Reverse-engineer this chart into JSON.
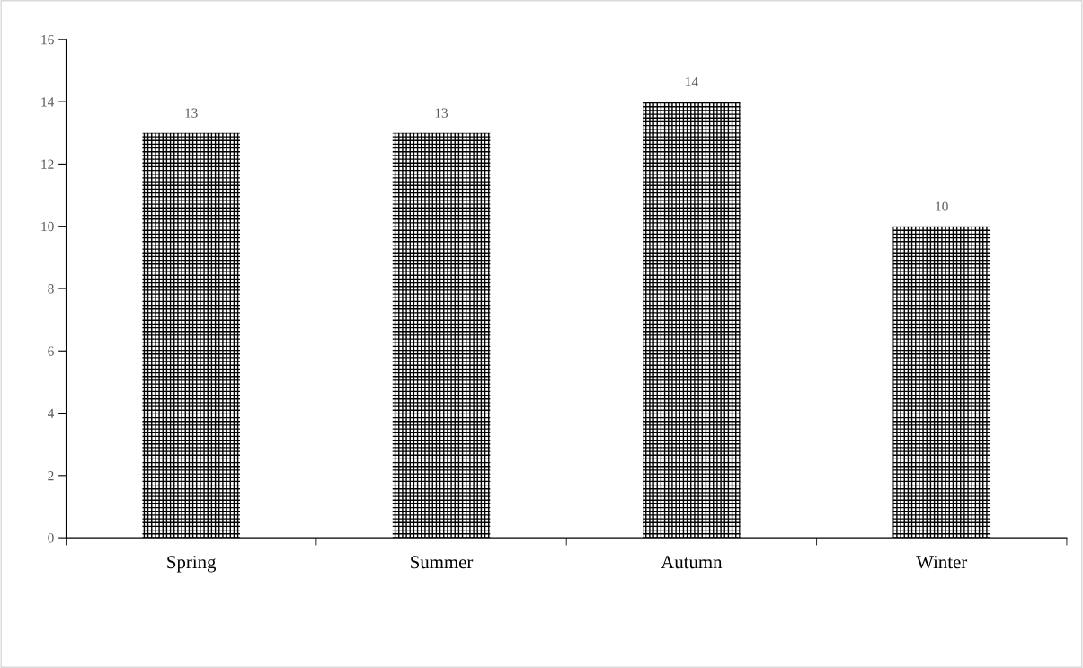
{
  "chart_data": {
    "type": "bar",
    "categories": [
      "Spring",
      "Summer",
      "Autumn",
      "Winter"
    ],
    "values": [
      13,
      13,
      14,
      10
    ],
    "color": "#000000",
    "ylim": [
      0,
      16
    ],
    "yticks": [
      0,
      2,
      4,
      6,
      8,
      10,
      12,
      14,
      16
    ],
    "data_labels": true,
    "grid": false,
    "legend": false
  }
}
